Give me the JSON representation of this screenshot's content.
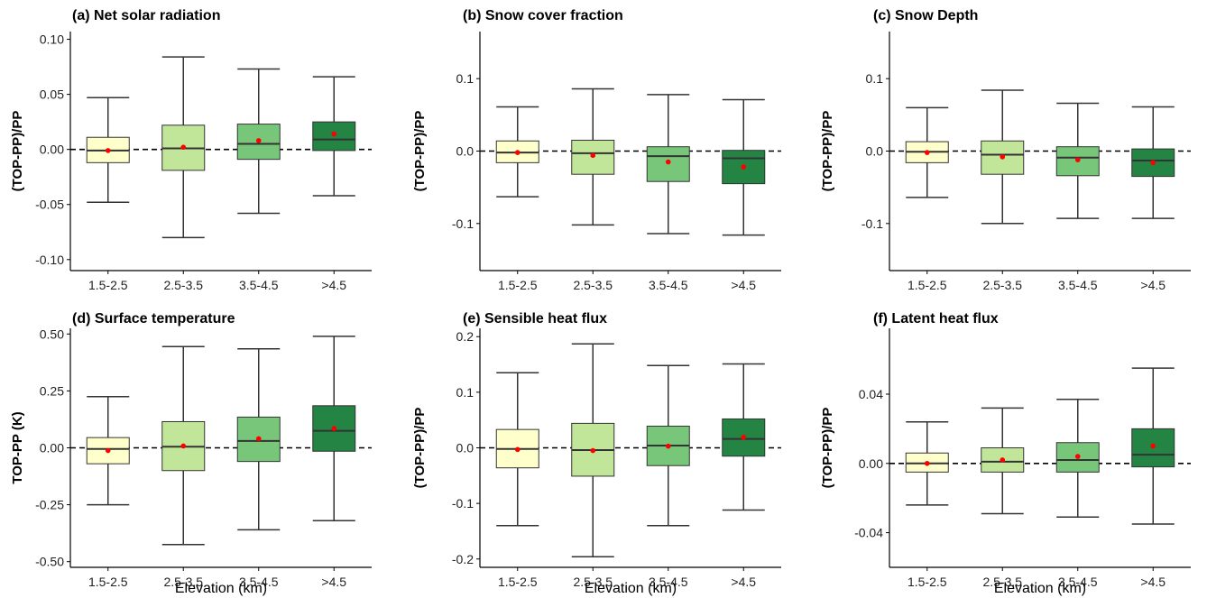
{
  "figure": {
    "xlabel": "Elevation (km)"
  },
  "chart_data": [
    {
      "type": "box",
      "title": "(a) Net solar radiation",
      "ylabel": "(TOP-PP)/PP",
      "xlabel": "",
      "categories": [
        "1.5-2.5",
        "2.5-3.5",
        "3.5-4.5",
        ">4.5"
      ],
      "ylim": [
        -0.11,
        0.107
      ],
      "yticks": [
        0.1,
        0.05,
        0.0,
        -0.05,
        -0.1
      ],
      "yticklabels": [
        "0.10",
        "0.05",
        "0.00",
        "-0.05",
        "-0.10"
      ],
      "reference_line": 0,
      "boxes": [
        {
          "min": -0.048,
          "q1": -0.012,
          "median": -0.001,
          "q3": 0.011,
          "max": 0.047,
          "mean": -0.001
        },
        {
          "min": -0.08,
          "q1": -0.019,
          "median": 0.001,
          "q3": 0.022,
          "max": 0.084,
          "mean": 0.002
        },
        {
          "min": -0.058,
          "q1": -0.009,
          "median": 0.005,
          "q3": 0.023,
          "max": 0.073,
          "mean": 0.008
        },
        {
          "min": -0.042,
          "q1": -0.001,
          "median": 0.009,
          "q3": 0.025,
          "max": 0.066,
          "mean": 0.014
        }
      ]
    },
    {
      "type": "box",
      "title": "(b) Snow cover fraction",
      "ylabel": "(TOP-PP)/PP",
      "xlabel": "",
      "categories": [
        "1.5-2.5",
        "2.5-3.5",
        "3.5-4.5",
        ">4.5"
      ],
      "ylim": [
        -0.165,
        0.165
      ],
      "yticks": [
        0.1,
        0.0,
        -0.1
      ],
      "yticklabels": [
        "0.1",
        "0.0",
        "-0.1"
      ],
      "reference_line": 0,
      "boxes": [
        {
          "min": -0.063,
          "q1": -0.016,
          "median": -0.002,
          "q3": 0.014,
          "max": 0.061,
          "mean": -0.002
        },
        {
          "min": -0.102,
          "q1": -0.032,
          "median": -0.003,
          "q3": 0.015,
          "max": 0.086,
          "mean": -0.006
        },
        {
          "min": -0.114,
          "q1": -0.042,
          "median": -0.007,
          "q3": 0.006,
          "max": 0.078,
          "mean": -0.015
        },
        {
          "min": -0.116,
          "q1": -0.045,
          "median": -0.01,
          "q3": 0.001,
          "max": 0.071,
          "mean": -0.022
        }
      ]
    },
    {
      "type": "box",
      "title": "(c) Snow Depth",
      "ylabel": "(TOP-PP)/PP",
      "xlabel": "",
      "categories": [
        "1.5-2.5",
        "2.5-3.5",
        "3.5-4.5",
        ">4.5"
      ],
      "ylim": [
        -0.165,
        0.165
      ],
      "yticks": [
        0.1,
        0.0,
        -0.1
      ],
      "yticklabels": [
        "0.1",
        "0.0",
        "-0.1"
      ],
      "reference_line": 0,
      "boxes": [
        {
          "min": -0.064,
          "q1": -0.016,
          "median": -0.001,
          "q3": 0.013,
          "max": 0.06,
          "mean": -0.002
        },
        {
          "min": -0.1,
          "q1": -0.032,
          "median": -0.005,
          "q3": 0.014,
          "max": 0.084,
          "mean": -0.008
        },
        {
          "min": -0.093,
          "q1": -0.034,
          "median": -0.009,
          "q3": 0.006,
          "max": 0.066,
          "mean": -0.012
        },
        {
          "min": -0.093,
          "q1": -0.035,
          "median": -0.013,
          "q3": 0.003,
          "max": 0.061,
          "mean": -0.016
        }
      ]
    },
    {
      "type": "box",
      "title": "(d) Surface temperature",
      "ylabel": "TOP-PP (K)",
      "xlabel": "Elevation (km)",
      "categories": [
        "1.5-2.5",
        "2.5-3.5",
        "3.5-4.5",
        ">4.5"
      ],
      "ylim": [
        -0.525,
        0.525
      ],
      "yticks": [
        0.5,
        0.25,
        0.0,
        -0.25,
        -0.5
      ],
      "yticklabels": [
        "0.50",
        "0.25",
        "0.00",
        "-0.25",
        "-0.50"
      ],
      "reference_line": 0,
      "boxes": [
        {
          "min": -0.25,
          "q1": -0.07,
          "median": -0.005,
          "q3": 0.045,
          "max": 0.225,
          "mean": -0.012
        },
        {
          "min": -0.425,
          "q1": -0.1,
          "median": 0.005,
          "q3": 0.115,
          "max": 0.445,
          "mean": 0.008
        },
        {
          "min": -0.36,
          "q1": -0.06,
          "median": 0.03,
          "q3": 0.135,
          "max": 0.435,
          "mean": 0.04
        },
        {
          "min": -0.32,
          "q1": -0.015,
          "median": 0.075,
          "q3": 0.185,
          "max": 0.49,
          "mean": 0.085
        }
      ]
    },
    {
      "type": "box",
      "title": "(e) Sensible heat flux",
      "ylabel": "(TOP-PP)/PP",
      "xlabel": "Elevation (km)",
      "categories": [
        "1.5-2.5",
        "2.5-3.5",
        "3.5-4.5",
        ">4.5"
      ],
      "ylim": [
        -0.215,
        0.215
      ],
      "yticks": [
        0.2,
        0.1,
        0.0,
        -0.1,
        -0.2
      ],
      "yticklabels": [
        "0.2",
        "0.1",
        "0.0",
        "-0.1",
        "-0.2"
      ],
      "reference_line": 0,
      "boxes": [
        {
          "min": -0.14,
          "q1": -0.036,
          "median": -0.002,
          "q3": 0.033,
          "max": 0.135,
          "mean": -0.003
        },
        {
          "min": -0.196,
          "q1": -0.051,
          "median": -0.004,
          "q3": 0.044,
          "max": 0.187,
          "mean": -0.005
        },
        {
          "min": -0.14,
          "q1": -0.032,
          "median": 0.004,
          "q3": 0.039,
          "max": 0.148,
          "mean": 0.003
        },
        {
          "min": -0.112,
          "q1": -0.015,
          "median": 0.016,
          "q3": 0.052,
          "max": 0.151,
          "mean": 0.019
        }
      ]
    },
    {
      "type": "box",
      "title": "(f) Latent heat flux",
      "ylabel": "(TOP-PP)/PP",
      "xlabel": "Elevation (km)",
      "categories": [
        "1.5-2.5",
        "2.5-3.5",
        "3.5-4.5",
        ">4.5"
      ],
      "ylim": [
        -0.06,
        0.078
      ],
      "yticks": [
        0.04,
        0.0,
        -0.04
      ],
      "yticklabels": [
        "0.04",
        "0.00",
        "-0.04"
      ],
      "reference_line": 0,
      "boxes": [
        {
          "min": -0.024,
          "q1": -0.005,
          "median": 0.0,
          "q3": 0.006,
          "max": 0.024,
          "mean": 0.0
        },
        {
          "min": -0.029,
          "q1": -0.005,
          "median": 0.001,
          "q3": 0.009,
          "max": 0.032,
          "mean": 0.002
        },
        {
          "min": -0.031,
          "q1": -0.005,
          "median": 0.002,
          "q3": 0.012,
          "max": 0.037,
          "mean": 0.004
        },
        {
          "min": -0.035,
          "q1": -0.002,
          "median": 0.005,
          "q3": 0.02,
          "max": 0.055,
          "mean": 0.01
        }
      ]
    }
  ],
  "colors": {
    "box_fills": [
      "#ffffcc",
      "#c2e699",
      "#78c679",
      "#238443"
    ],
    "mean_marker": "#ff0000",
    "lines": "#333333"
  }
}
